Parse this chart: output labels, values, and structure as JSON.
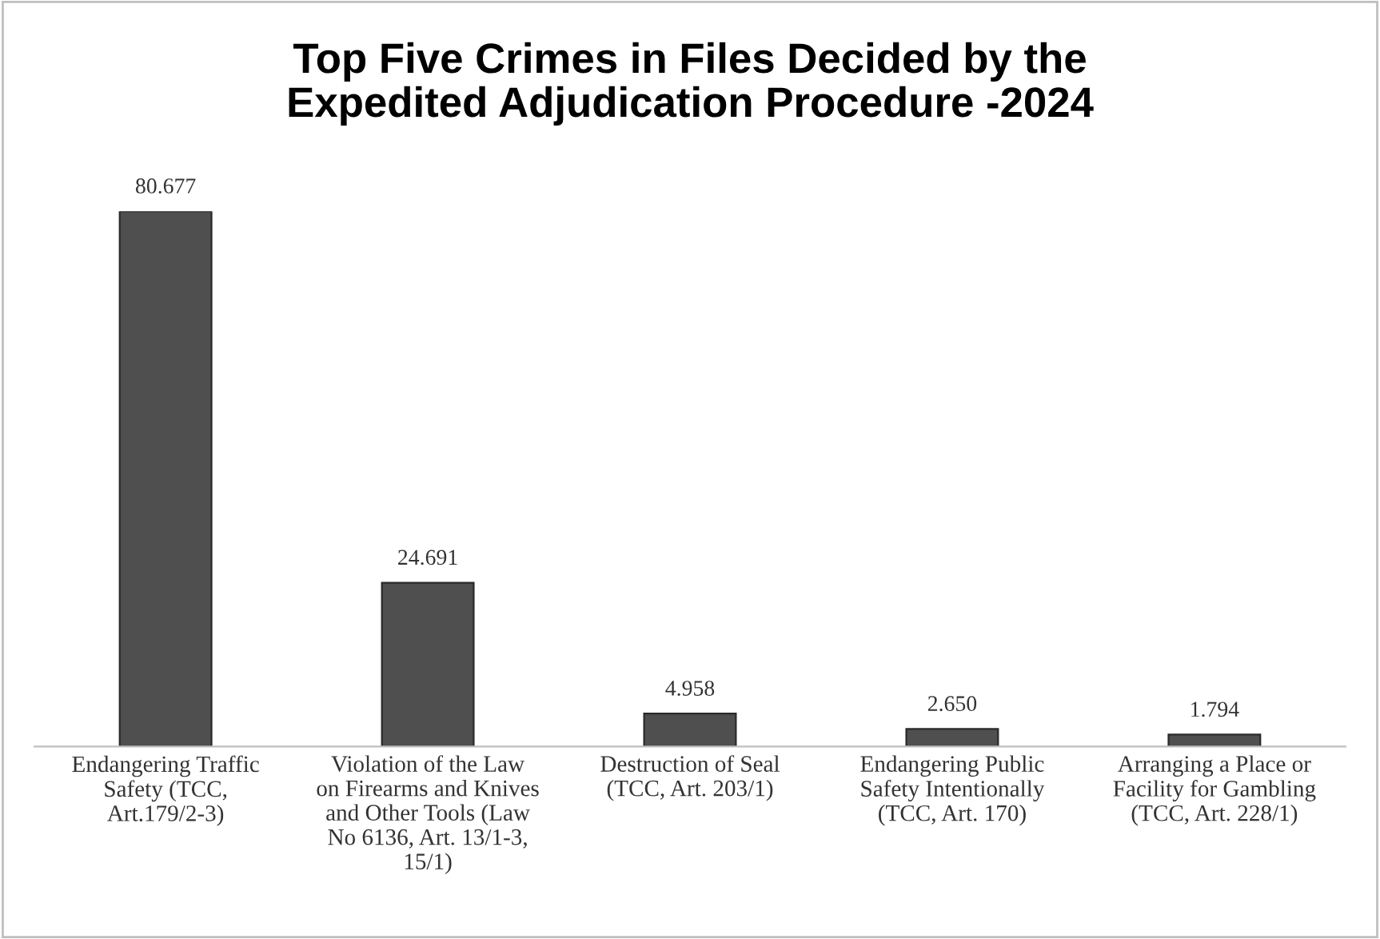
{
  "chart_data": {
    "type": "bar",
    "title": "Top Five Crimes in Files Decided by the\nExpedited Adjudication Procedure -2024",
    "categories": [
      "Endangering Traffic\nSafety (TCC,\nArt.179/2-3)",
      "Violation of the Law\non Firearms and Knives\nand Other Tools (Law\nNo 6136, Art. 13/1-3,\n15/1)",
      "Destruction of Seal\n(TCC, Art. 203/1)",
      "Endangering Public\nSafety Intentionally\n(TCC, Art. 170)",
      "Arranging a Place or\nFacility for Gambling\n(TCC, Art. 228/1)"
    ],
    "values": [
      80677,
      24691,
      4958,
      2650,
      1794
    ],
    "value_labels": [
      "80.677",
      "24.691",
      "4.958",
      "2.650",
      "1.794"
    ],
    "color": "#4f4f4f",
    "grid": false,
    "legend": false
  }
}
